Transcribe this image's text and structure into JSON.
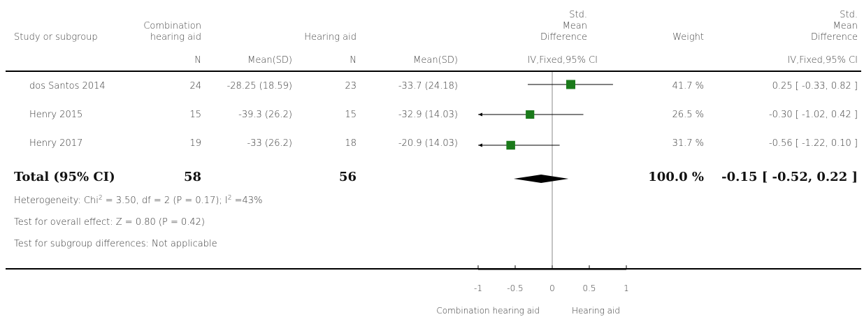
{
  "columns": {
    "study": "Study or subgroup",
    "group1": "Combination\nhearing aid",
    "group2": "Hearing aid",
    "smd_top": "Std.\nMean\nDifference",
    "weight": "Weight",
    "smd_right": "Std.\nMean\nDifference",
    "n1": "N",
    "mean1": "Mean(SD)",
    "n2": "N",
    "mean2": "Mean(SD)",
    "method_plot": "IV,Fixed,95% CI",
    "method_right": "IV,Fixed,95% CI"
  },
  "rows": [
    {
      "study": "dos Santos 2014",
      "n1": "24",
      "mean1": "-28.25 (18.59)",
      "n2": "23",
      "mean2": "-33.7 (24.18)",
      "weight": "41.7 %",
      "ci": "0.25 [ -0.33, 0.82 ]"
    },
    {
      "study": "Henry 2015",
      "n1": "15",
      "mean1": "-39.3 (26.2)",
      "n2": "15",
      "mean2": "-32.9 (14.03)",
      "weight": "26.5 %",
      "ci": "-0.30 [ -1.02, 0.42 ]"
    },
    {
      "study": "Henry 2017",
      "n1": "19",
      "mean1": "-33 (26.2)",
      "n2": "18",
      "mean2": "-20.9 (14.03)",
      "weight": "31.7 %",
      "ci": "-0.56 [ -1.22, 0.10 ]"
    }
  ],
  "total": {
    "label": "Total (95% CI)",
    "n1": "58",
    "n2": "56",
    "weight": "100.0 %",
    "ci": "-0.15 [ -0.52, 0.22 ]"
  },
  "footnotes": {
    "heterogeneity_prefix": "Heterogeneity: Chi",
    "heterogeneity_mid": " = 3.50, df = 2 (P = 0.17); I",
    "heterogeneity_suffix": " =43%",
    "sup": "2",
    "overall": "Test for overall effect: Z = 0.80 (P = 0.42)",
    "subgroup": "Test for subgroup differences: Not applicable"
  },
  "axis": {
    "favours_left": "Combination hearing aid",
    "favours_right": "Hearing aid"
  },
  "colors": {
    "square": "#1a7a1a",
    "diamond": "#000000",
    "line": "#000000"
  },
  "chart_data": {
    "type": "forest",
    "xlim": [
      -1,
      1
    ],
    "ticks": [
      -1,
      -0.5,
      0,
      0.5,
      1
    ],
    "tick_labels": [
      "-1",
      "-0.5",
      "0",
      "0.5",
      "1"
    ],
    "studies": [
      {
        "name": "dos Santos 2014",
        "estimate": 0.25,
        "lower": -0.33,
        "upper": 0.82,
        "weight": 41.7
      },
      {
        "name": "Henry 2015",
        "estimate": -0.3,
        "lower": -1.02,
        "upper": 0.42,
        "weight": 26.5
      },
      {
        "name": "Henry 2017",
        "estimate": -0.56,
        "lower": -1.22,
        "upper": 0.1,
        "weight": 31.7
      }
    ],
    "pooled": {
      "estimate": -0.15,
      "lower": -0.52,
      "upper": 0.22
    }
  }
}
